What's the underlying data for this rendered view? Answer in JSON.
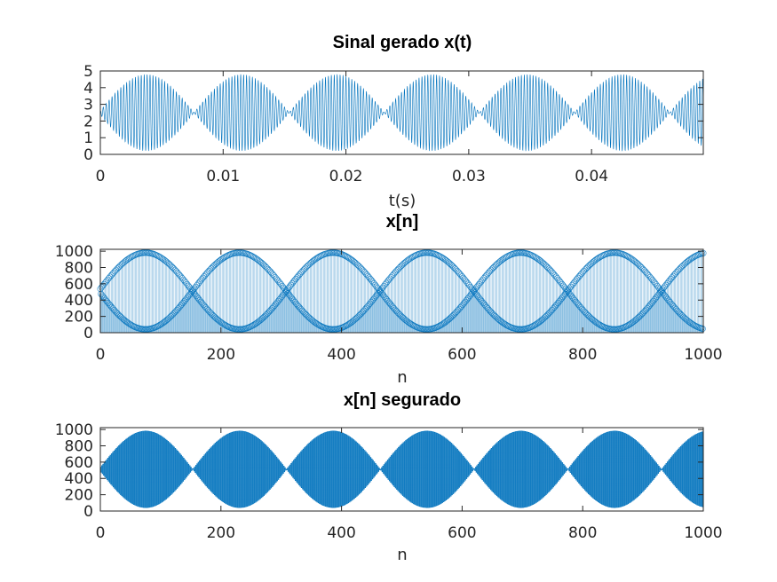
{
  "figure": {
    "accent_color": "#0072BD"
  },
  "chart_data": [
    {
      "type": "line",
      "title": "Sinal gerado x(t)",
      "xlabel": "t(s)",
      "ylabel": "",
      "xlim": [
        0,
        0.0491
      ],
      "ylim": [
        0,
        5
      ],
      "xticks": [
        0,
        0.01,
        0.02,
        0.03,
        0.04
      ],
      "xtick_labels": [
        "0",
        "0.01",
        "0.02",
        "0.03",
        "0.04"
      ],
      "yticks": [
        0,
        1,
        2,
        3,
        4,
        5
      ],
      "ytick_labels": [
        "0",
        "1",
        "2",
        "3",
        "4",
        "5"
      ],
      "grid": false,
      "color": "#0072BD",
      "signal": {
        "offset": 2.5,
        "envelope_amplitude": 2.3,
        "envelope_period": 0.00775,
        "envelope_peak_at": 0.00375,
        "carrier_cycles_per_unit": 4200
      }
    },
    {
      "type": "stem",
      "title": "x[n]",
      "xlabel": "n",
      "ylabel": "",
      "xlim": [
        0,
        1000
      ],
      "ylim": [
        0,
        1023
      ],
      "xticks": [
        0,
        200,
        400,
        600,
        800,
        1000
      ],
      "xtick_labels": [
        "0",
        "200",
        "400",
        "600",
        "800",
        "1000"
      ],
      "yticks": [
        0,
        200,
        400,
        600,
        800,
        1000
      ],
      "ytick_labels": [
        "0",
        "200",
        "400",
        "600",
        "800",
        "1000"
      ],
      "grid": false,
      "color": "#0072BD",
      "signal": {
        "offset": 511.5,
        "envelope_amplitude": 470,
        "envelope_period_samples": 155.5,
        "envelope_peak_at": 75,
        "carrier_period_samples": 2
      }
    },
    {
      "type": "stairs",
      "title": "x[n] segurado",
      "xlabel": "n",
      "ylabel": "",
      "xlim": [
        0,
        1000
      ],
      "ylim": [
        0,
        1023
      ],
      "xticks": [
        0,
        200,
        400,
        600,
        800,
        1000
      ],
      "xtick_labels": [
        "0",
        "200",
        "400",
        "600",
        "800",
        "1000"
      ],
      "yticks": [
        0,
        200,
        400,
        600,
        800,
        1000
      ],
      "ytick_labels": [
        "0",
        "200",
        "400",
        "600",
        "800",
        "1000"
      ],
      "grid": false,
      "color": "#0072BD",
      "signal": {
        "offset": 511.5,
        "envelope_amplitude": 470,
        "envelope_period_samples": 155.5,
        "envelope_peak_at": 75,
        "carrier_period_samples": 2
      }
    }
  ]
}
